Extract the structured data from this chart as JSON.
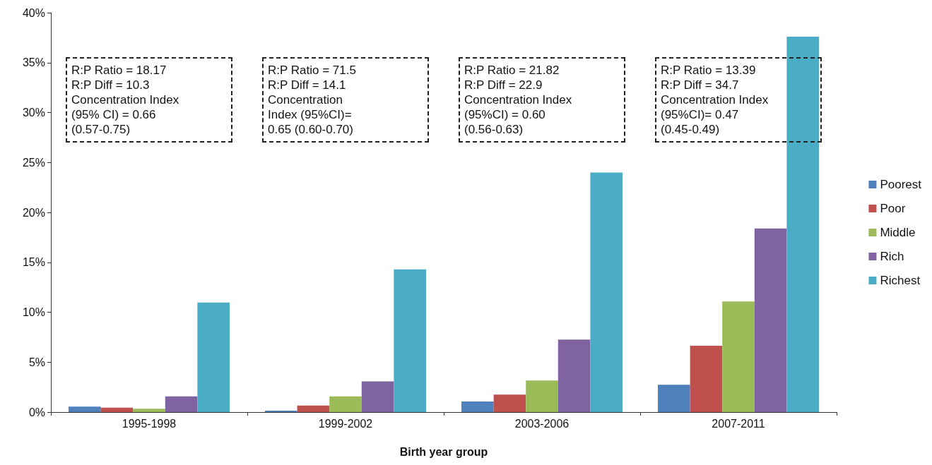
{
  "chart_data": {
    "type": "bar",
    "xlabel": "Birth year group",
    "categories": [
      "1995-1998",
      "1999-2002",
      "2003-2006",
      "2007-2011"
    ],
    "series": [
      {
        "name": "Poorest",
        "color": "#4f81bd",
        "values": [
          0.55,
          0.14,
          1.06,
          2.73
        ]
      },
      {
        "name": "Poor",
        "color": "#c0504d",
        "values": [
          0.45,
          0.65,
          1.75,
          6.65
        ]
      },
      {
        "name": "Middle",
        "color": "#9bbb59",
        "values": [
          0.34,
          1.57,
          3.16,
          11.08
        ]
      },
      {
        "name": "Rich",
        "color": "#8064a2",
        "values": [
          1.57,
          3.07,
          7.26,
          18.4
        ]
      },
      {
        "name": "Richest",
        "color": "#4bacc6",
        "values": [
          10.98,
          14.3,
          24.0,
          37.6
        ]
      }
    ],
    "ylim": [
      0,
      40
    ],
    "yticks": [
      {
        "value": 0,
        "label": "0%"
      },
      {
        "value": 5,
        "label": "5%"
      },
      {
        "value": 10,
        "label": "10%"
      },
      {
        "value": 15,
        "label": "15%"
      },
      {
        "value": 20,
        "label": "20%"
      },
      {
        "value": 25,
        "label": "25%"
      },
      {
        "value": 30,
        "label": "30%"
      },
      {
        "value": 35,
        "label": "35%"
      },
      {
        "value": 40,
        "label": "40%"
      }
    ],
    "grid": false,
    "legend": "right",
    "annotations": [
      "R:P Ratio = 18.17\nR:P Diff = 10.3\nConcentration Index\n(95% CI) = 0.66\n(0.57-0.75)",
      "R:P Ratio = 71.5\nR:P Diff = 14.1\nConcentration\nIndex (95%CI)=\n0.65 (0.60-0.70)",
      "R:P Ratio = 21.82\nR:P Diff = 22.9\nConcentration Index\n(95%CI) = 0.60\n(0.56-0.63)",
      "R:P Ratio = 13.39\nR:P Diff = 34.7\nConcentration Index\n(95%CI)= 0.47\n(0.45-0.49)"
    ]
  }
}
